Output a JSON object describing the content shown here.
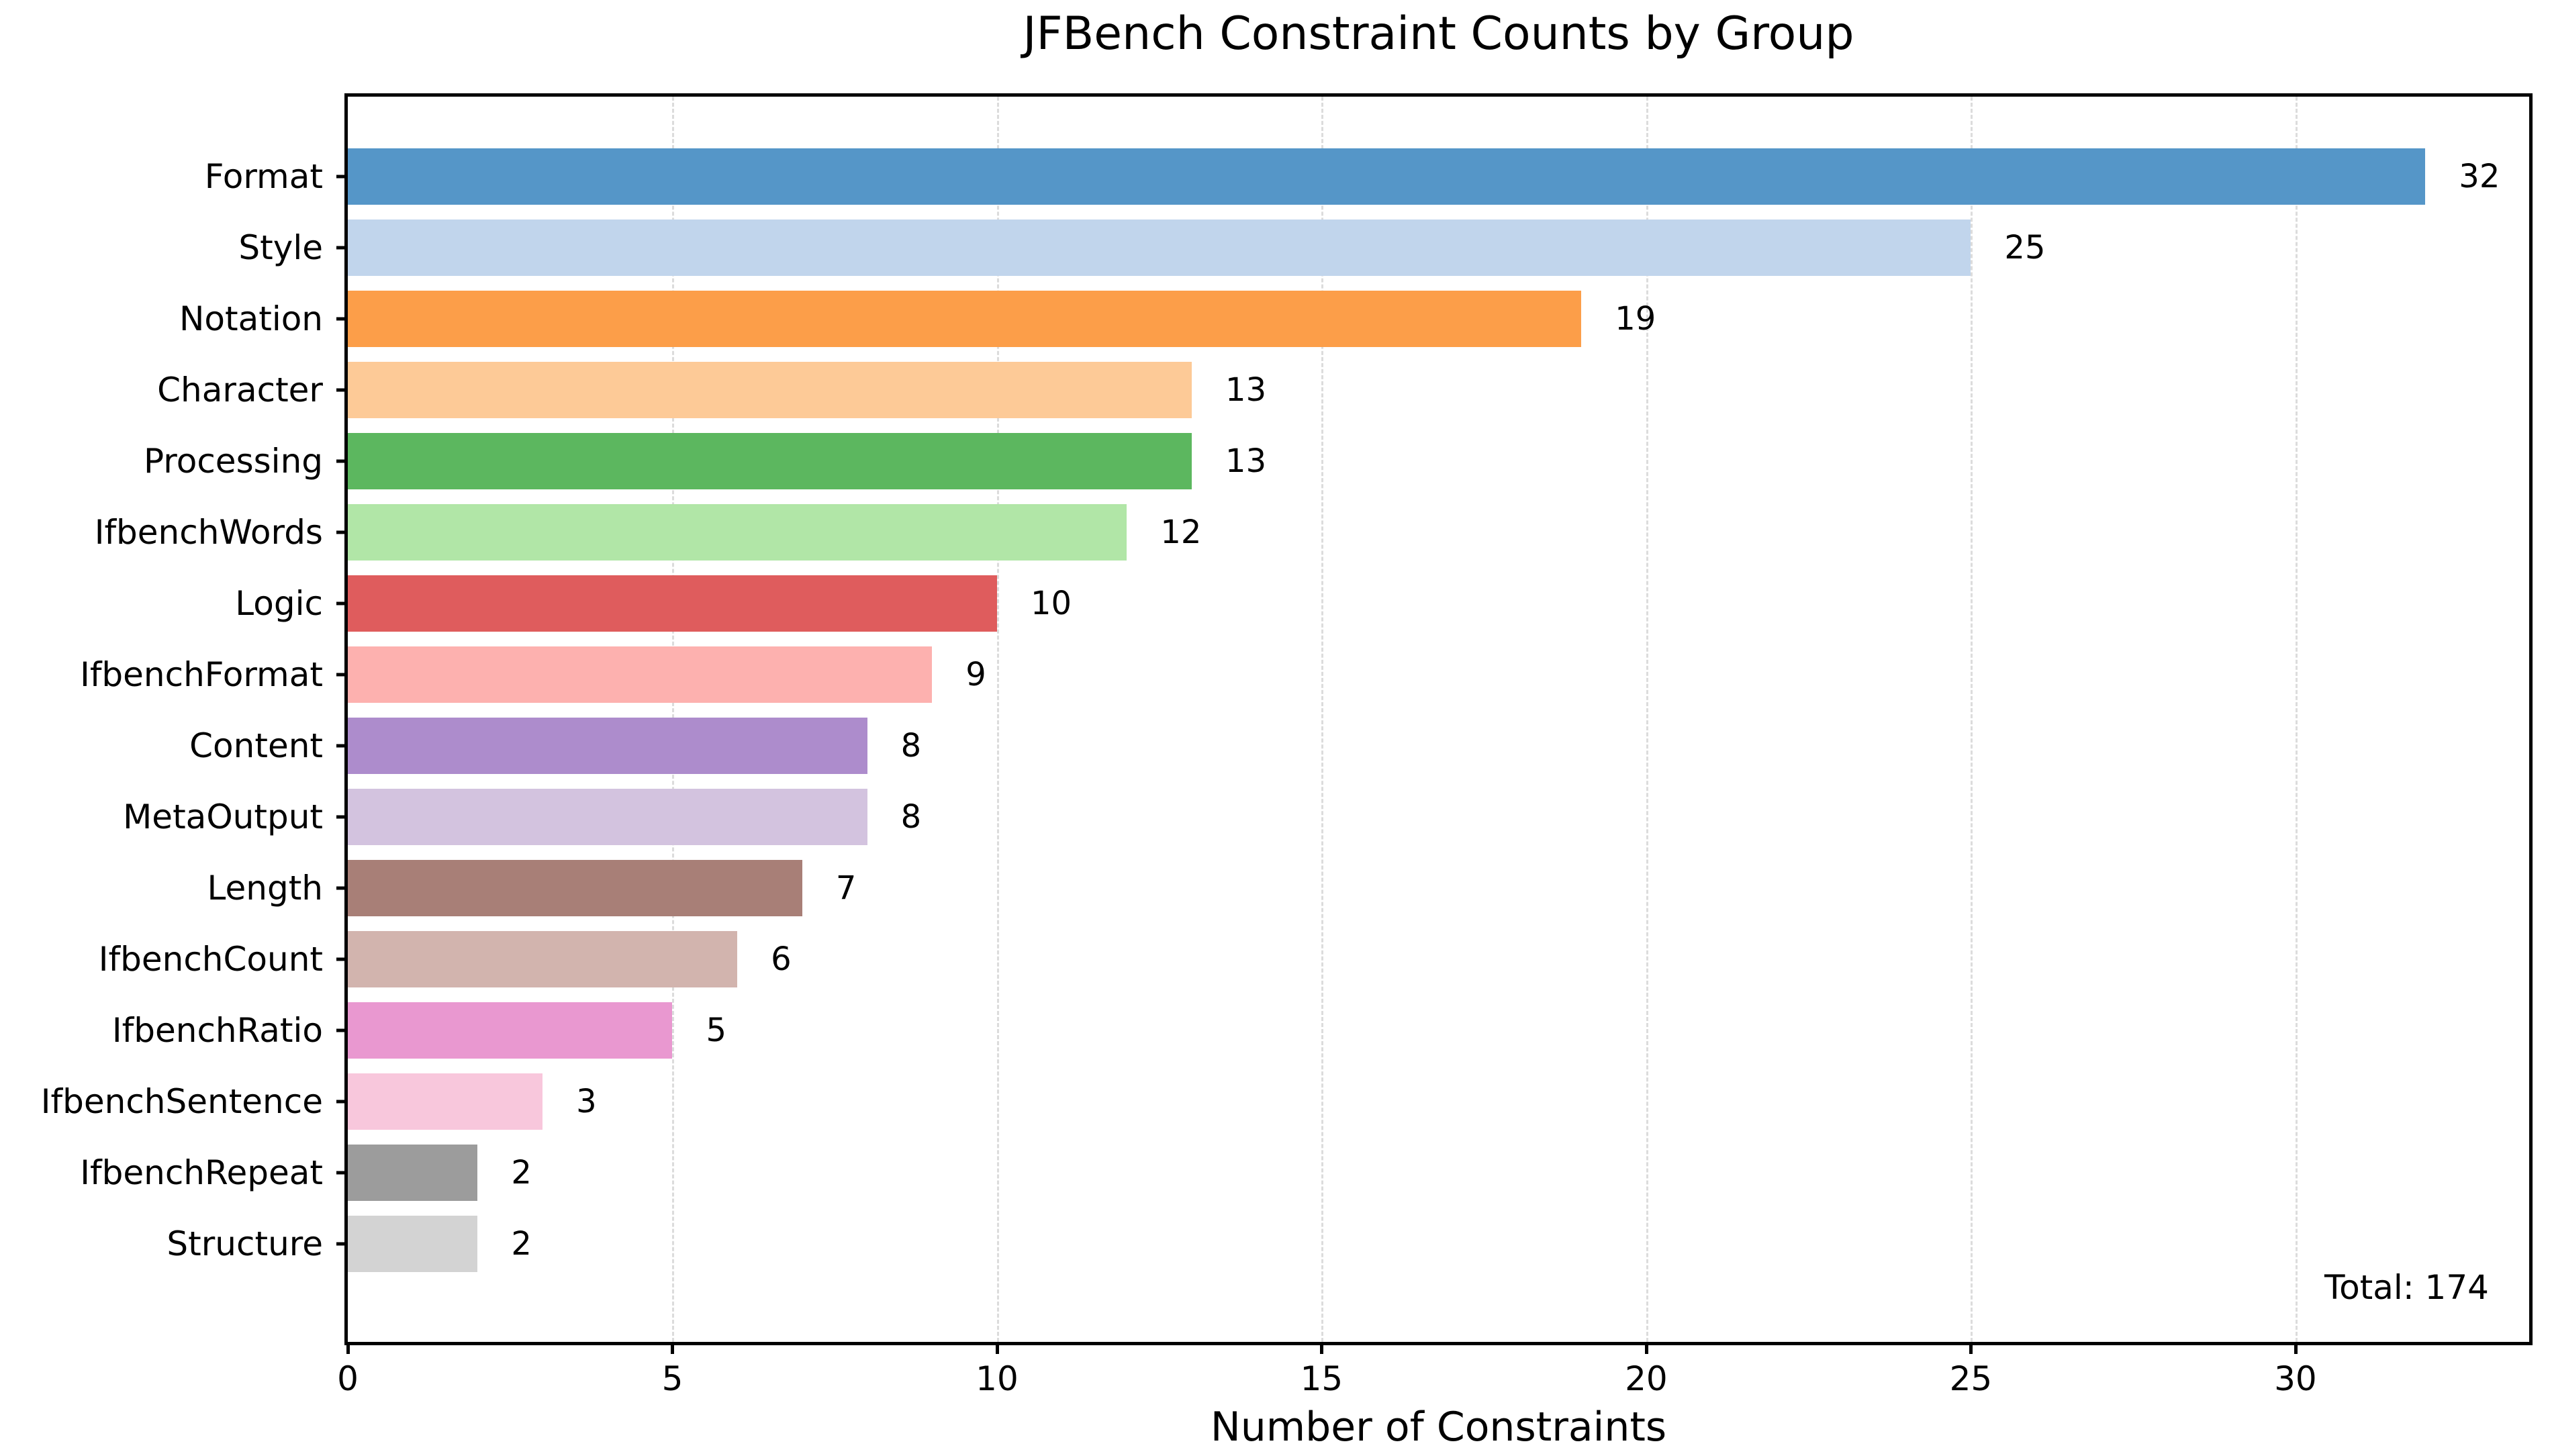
{
  "chart_data": {
    "type": "bar",
    "orientation": "horizontal",
    "title": "JFBench Constraint Counts by Group",
    "xlabel": "Number of Constraints",
    "ylabel": "",
    "categories": [
      "Format",
      "Style",
      "Notation",
      "Character",
      "Processing",
      "IfbenchWords",
      "Logic",
      "IfbenchFormat",
      "Content",
      "MetaOutput",
      "Length",
      "IfbenchCount",
      "IfbenchRatio",
      "IfbenchSentence",
      "IfbenchRepeat",
      "Structure"
    ],
    "values": [
      32,
      25,
      19,
      13,
      13,
      12,
      10,
      9,
      8,
      8,
      7,
      6,
      5,
      3,
      2,
      2
    ],
    "bar_colors": [
      "#5596c8",
      "#c1d5ec",
      "#fc9e49",
      "#fdca97",
      "#5cb75f",
      "#b1e6a7",
      "#df5c5d",
      "#fdb1af",
      "#ad8ccc",
      "#d3c3df",
      "#a87f77",
      "#d2b4ae",
      "#e998d0",
      "#f8c7dc",
      "#9c9c9c",
      "#d3d3d3"
    ],
    "xlim": [
      0,
      33.6
    ],
    "xticks": [
      0,
      5,
      10,
      15,
      20,
      25,
      30
    ],
    "grid": "vertical-dashed",
    "legend": "none",
    "annotation": "Total: 174",
    "total": 174
  }
}
